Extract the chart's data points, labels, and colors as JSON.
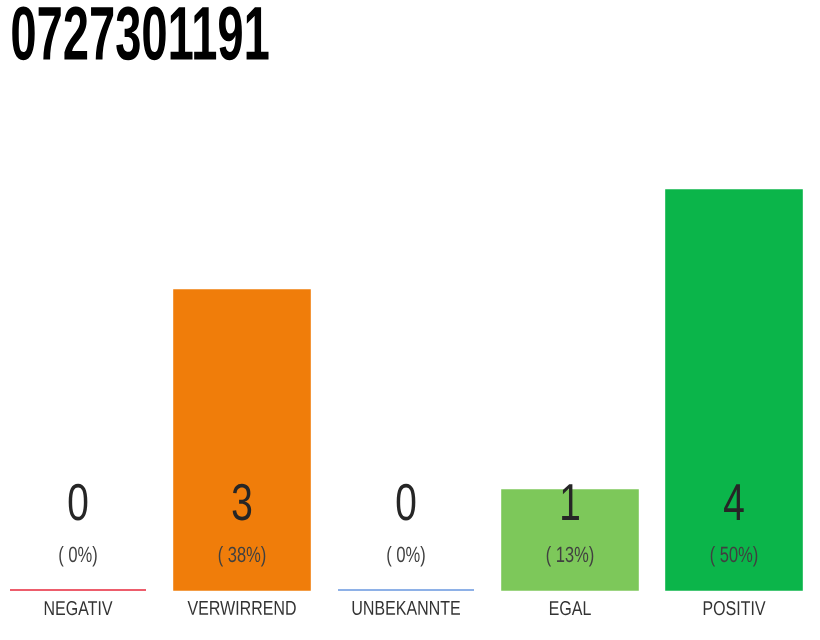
{
  "chart_data": {
    "type": "bar",
    "title": "0727301191",
    "categories": [
      "NEGATIV",
      "VERWIRREND",
      "UNBEKANNTE",
      "EGAL",
      "POSITIV"
    ],
    "values": [
      0,
      3,
      0,
      1,
      4
    ],
    "colors": [
      "#e8283c",
      "#f07d0a",
      "#6a98e0",
      "#7dc85a",
      "#0bb54a"
    ],
    "data_labels": true,
    "annotations": [
      "( 0%)",
      "( 38%)",
      "( 0%)",
      "( 13%)",
      "( 50%)"
    ],
    "grid": false
  }
}
